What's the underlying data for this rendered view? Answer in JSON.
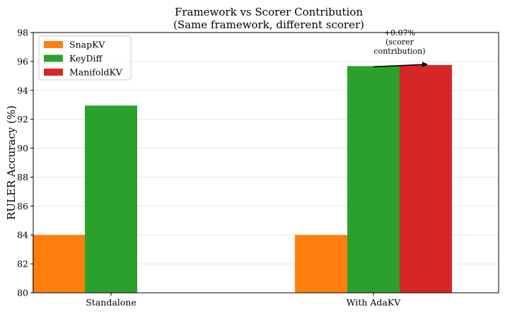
{
  "chart_data": {
    "type": "bar",
    "title": "Framework vs Scorer Contribution",
    "subtitle": "(Same framework, different scorer)",
    "xlabel": "",
    "ylabel": "RULER Accuracy (%)",
    "categories": [
      "Standalone",
      "With AdaKV"
    ],
    "ylim": [
      80,
      98
    ],
    "yticks": [
      80,
      82,
      84,
      86,
      88,
      90,
      92,
      94,
      96,
      98
    ],
    "grid": "horizontal",
    "legend_position": "top-left",
    "series": [
      {
        "name": "SnapKV",
        "color": "#ff7f0e",
        "values": [
          84.0,
          84.0
        ]
      },
      {
        "name": "KeyDiff",
        "color": "#2ca02c",
        "values": [
          92.95,
          95.68
        ]
      },
      {
        "name": "ManifoldKV",
        "color": "#d62728",
        "values": [
          null,
          95.75
        ]
      }
    ],
    "annotation": {
      "lines": [
        "+0.07%",
        "(scorer",
        "contribution)"
      ],
      "from": {
        "category": "With AdaKV",
        "series": "KeyDiff"
      },
      "to": {
        "category": "With AdaKV",
        "series": "ManifoldKV"
      }
    }
  }
}
